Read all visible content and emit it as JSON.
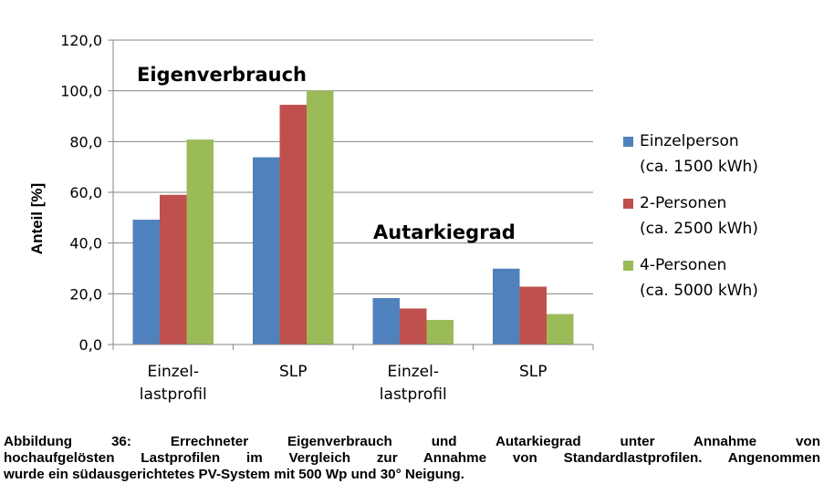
{
  "chart_data": {
    "type": "bar",
    "ylabel": "Anteil [%]",
    "ylim": [
      0,
      120
    ],
    "yticks": [
      "0,0",
      "20,0",
      "40,0",
      "60,0",
      "80,0",
      "100,0",
      "120,0"
    ],
    "categories": [
      [
        "Einzel-",
        "lastprofil"
      ],
      [
        "SLP"
      ],
      [
        "Einzel-",
        "lastprofil"
      ],
      [
        "SLP"
      ]
    ],
    "series": [
      {
        "name": [
          "Einzelperson",
          "(ca. 1500 kWh)"
        ],
        "color": "#4f81bd",
        "values": [
          49.2,
          73.8,
          18.3,
          29.9
        ]
      },
      {
        "name": [
          "2-Personen",
          "(ca. 2500 kWh)"
        ],
        "color": "#c0504d",
        "values": [
          59.0,
          94.5,
          14.2,
          22.8
        ]
      },
      {
        "name": [
          "4-Personen",
          "(ca. 5000 kWh)"
        ],
        "color": "#9bbb59",
        "values": [
          80.8,
          100.0,
          9.7,
          12.0
        ]
      }
    ],
    "annotations": [
      "Eigenverbrauch",
      "Autarkiegrad"
    ],
    "grid": true,
    "legend": "right"
  },
  "caption": [
    "Abbildung 36: Errechneter Eigenverbrauch und Autarkiegrad unter Annahme von",
    "hochaufgelösten Lastprofilen im Vergleich zur Annahme von Standardlastprofilen. Angenommen",
    "wurde ein südausgerichtetes PV-System mit 500 Wp und 30° Neigung."
  ]
}
